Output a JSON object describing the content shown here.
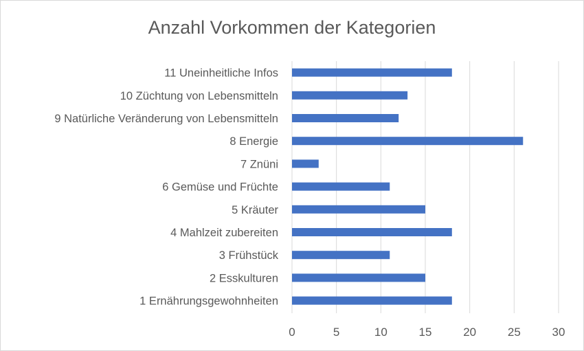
{
  "chart_data": {
    "type": "bar",
    "orientation": "horizontal",
    "title": "Anzahl Vorkommen der Kategorien",
    "xlabel": "",
    "ylabel": "",
    "xlim": [
      0,
      30
    ],
    "xticks": [
      0,
      5,
      10,
      15,
      20,
      25,
      30
    ],
    "grid": "vertical",
    "bar_color": "#4472c4",
    "categories": [
      "11 Uneinheitliche Infos",
      "10 Züchtung von Lebensmitteln",
      "9 Natürliche Veränderung von Lebensmitteln",
      "8 Energie",
      "7 Znüni",
      "6 Gemüse und Früchte",
      "5 Kräuter",
      "4 Mahlzeit zubereiten",
      "3 Frühstück",
      "2 Esskulturen",
      "1 Ernährungsgewohnheiten"
    ],
    "values": [
      18,
      13,
      12,
      26,
      3,
      11,
      15,
      18,
      11,
      15,
      18
    ]
  }
}
